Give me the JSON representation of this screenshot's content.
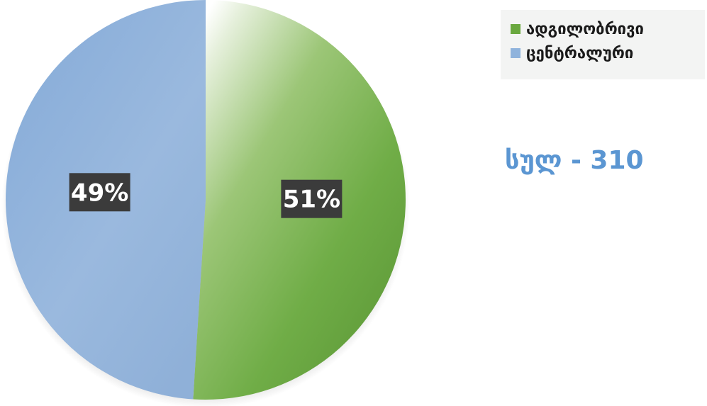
{
  "chart_data": {
    "type": "pie",
    "categories": [
      "ადგილობრივი",
      "ცენტრალური"
    ],
    "values": [
      51,
      49
    ],
    "data_labels": [
      "51%",
      "49%"
    ],
    "colors": [
      "#6aa83f",
      "#8fb3dc"
    ],
    "legend": {
      "placement": "top-right",
      "entries": [
        "ადგილობრივი",
        "ცენტრალური"
      ]
    },
    "annotation": "სულ - 310"
  }
}
